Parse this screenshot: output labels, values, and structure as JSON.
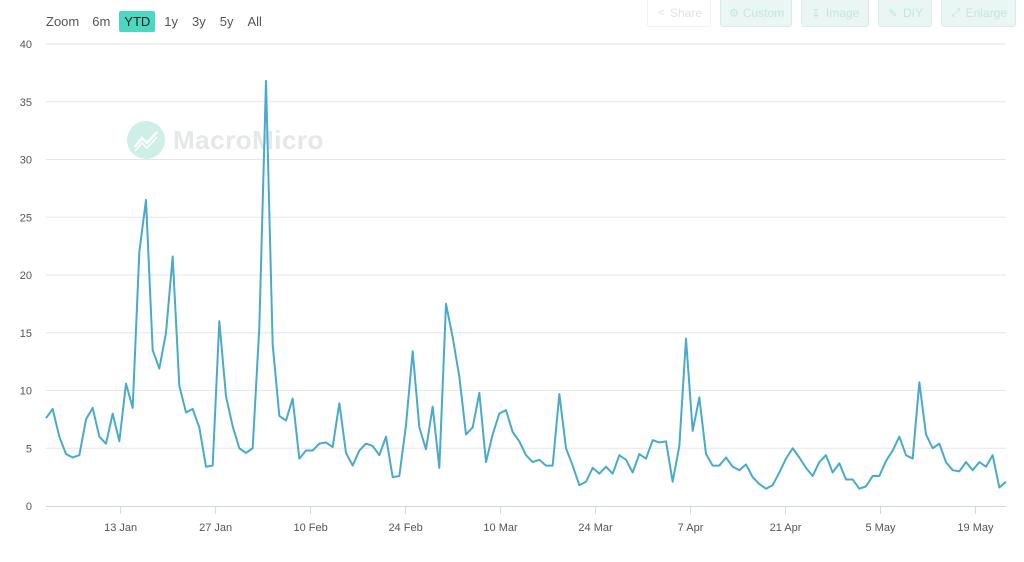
{
  "toolbar": {
    "zoom_label": "Zoom",
    "ranges": [
      "6m",
      "YTD",
      "1y",
      "3y",
      "5y",
      "All"
    ],
    "active_range": "YTD",
    "buttons": [
      {
        "label": "Share",
        "icon": "share-icon"
      },
      {
        "label": "Custom",
        "icon": "gear-icon"
      },
      {
        "label": "Image",
        "icon": "download-icon"
      },
      {
        "label": "DIY",
        "icon": "pencil-icon"
      },
      {
        "label": "Enlarge",
        "icon": "expand-icon"
      }
    ]
  },
  "watermark": {
    "text": "MacroMicro"
  },
  "colors": {
    "line": "#4aaac9",
    "grid": "#e6e6e6",
    "active": "#4ad8c0"
  },
  "chart_data": {
    "type": "line",
    "ylim": [
      0,
      40
    ],
    "yticks": [
      0,
      5,
      10,
      15,
      20,
      25,
      30,
      35,
      40
    ],
    "xlabels": [
      "13 Jan",
      "27 Jan",
      "10 Feb",
      "24 Feb",
      "10 Mar",
      "24 Mar",
      "7 Apr",
      "21 Apr",
      "5 May",
      "19 May"
    ],
    "grid": true,
    "legend": "none",
    "series": [
      {
        "values": [
          7.6,
          8.4,
          6,
          4.5,
          4.2,
          4.4,
          7.5,
          8.5,
          6,
          5.4,
          8,
          5.6,
          10.6,
          8.5,
          22,
          26.5,
          13.5,
          11.9,
          15,
          21.6,
          10.4,
          8.1,
          8.4,
          6.8,
          3.4,
          3.5,
          16,
          9.5,
          6.9,
          5,
          4.6,
          5,
          15.5,
          36.8,
          14,
          7.8,
          7.4,
          9.3,
          4.1,
          4.8,
          4.8,
          5.4,
          5.5,
          5.1,
          8.9,
          4.6,
          3.5,
          4.8,
          5.4,
          5.2,
          4.4,
          6,
          2.5,
          2.6,
          7,
          13.4,
          6.8,
          4.9,
          8.6,
          3.3,
          17.5,
          14.6,
          11.2,
          6.2,
          6.8,
          9.8,
          3.8,
          6.2,
          8,
          8.3,
          6.4,
          5.6,
          4.4,
          3.8,
          4,
          3.5,
          3.5,
          9.7,
          5,
          3.5,
          1.8,
          2.1,
          3.3,
          2.8,
          3.4,
          2.8,
          4.4,
          4,
          2.9,
          4.5,
          4.1,
          5.7,
          5.5,
          5.6,
          2.1,
          5.2,
          14.5,
          6.5,
          9.4,
          4.5,
          3.5,
          3.5,
          4.2,
          3.4,
          3.1,
          3.6,
          2.5,
          1.9,
          1.5,
          1.8,
          2.9,
          4.1,
          5,
          4.2,
          3.3,
          2.6,
          3.8,
          4.4,
          2.9,
          3.7,
          2.3,
          2.3,
          1.5,
          1.7,
          2.6,
          2.6,
          3.9,
          4.8,
          6,
          4.4,
          4.1,
          10.7,
          6.2,
          5,
          5.4,
          3.8,
          3.1,
          3,
          3.8,
          3.1,
          3.8,
          3.4,
          4.4,
          1.6,
          2.1
        ]
      }
    ]
  }
}
